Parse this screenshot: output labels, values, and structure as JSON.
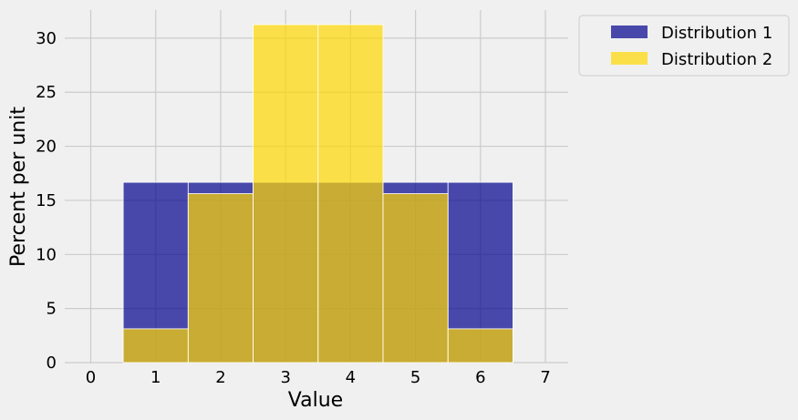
{
  "chart_data": {
    "type": "bar",
    "xlabel": "Value",
    "ylabel": "Percent per unit",
    "xlim": [
      -0.4,
      7.35
    ],
    "ylim": [
      0,
      32.6
    ],
    "x_ticks": [
      0,
      1,
      2,
      3,
      4,
      5,
      6,
      7
    ],
    "y_ticks": [
      0,
      5,
      10,
      15,
      20,
      25,
      30
    ],
    "bin_edges": [
      0.5,
      1.5,
      2.5,
      3.5,
      4.5,
      5.5,
      6.5
    ],
    "grid": true,
    "legend_position": "outside-top-right",
    "series": [
      {
        "name": "Distribution 1",
        "color": "#00008b",
        "opacity": 0.7,
        "values": [
          16.67,
          16.67,
          16.67,
          16.67,
          16.67,
          16.67
        ]
      },
      {
        "name": "Distribution 2",
        "color": "#ffd700",
        "opacity": 0.7,
        "values": [
          3.125,
          15.625,
          31.25,
          31.25,
          15.625,
          3.125
        ]
      }
    ]
  }
}
